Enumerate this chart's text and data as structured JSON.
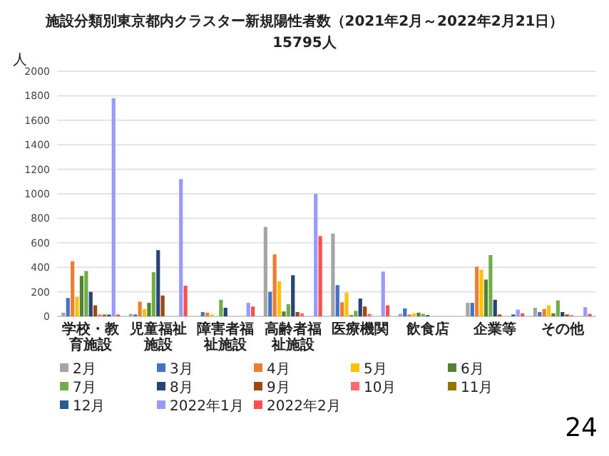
{
  "chart_data": {
    "type": "bar",
    "title": "施設分類別東京都内クラスター新規陽性者数（2021年2月～2022年2月21日）",
    "subtitle": "15795人",
    "ylabel": "人",
    "categories": [
      "学校・教育施設",
      "児童福祉施設",
      "障害者福祉施設",
      "高齢者福祉施設",
      "医療機関",
      "飲食店",
      "企業等",
      "その他"
    ],
    "series": [
      {
        "name": "2月",
        "color": "#a5a5a5",
        "values": [
          30,
          20,
          null,
          730,
          675,
          20,
          110,
          70
        ]
      },
      {
        "name": "3月",
        "color": "#4472c4",
        "values": [
          150,
          15,
          35,
          200,
          255,
          65,
          110,
          35
        ]
      },
      {
        "name": "4月",
        "color": "#ed7d31",
        "values": [
          450,
          120,
          30,
          505,
          115,
          15,
          405,
          60
        ]
      },
      {
        "name": "5月",
        "color": "#ffc000",
        "values": [
          160,
          60,
          15,
          285,
          195,
          25,
          380,
          90
        ]
      },
      {
        "name": "6月",
        "color": "#548235",
        "values": [
          330,
          110,
          0,
          40,
          10,
          30,
          300,
          25
        ]
      },
      {
        "name": "7月",
        "color": "#70ad47",
        "values": [
          370,
          360,
          135,
          100,
          45,
          20,
          500,
          130
        ]
      },
      {
        "name": "8月",
        "color": "#264478",
        "values": [
          200,
          540,
          70,
          335,
          145,
          10,
          135,
          35
        ]
      },
      {
        "name": "9月",
        "color": "#9e480e",
        "values": [
          90,
          170,
          0,
          35,
          80,
          null,
          15,
          15
        ]
      },
      {
        "name": "10月",
        "color": "#ff6b6b",
        "values": [
          15,
          0,
          0,
          25,
          20,
          0,
          0,
          10
        ]
      },
      {
        "name": "11月",
        "color": "#997300",
        "values": [
          15,
          0,
          0,
          0,
          0,
          0,
          0,
          0
        ]
      },
      {
        "name": "12月",
        "color": "#255e91",
        "values": [
          15,
          null,
          0,
          0,
          0,
          0,
          15,
          0
        ]
      },
      {
        "name": "2022年1月",
        "color": "#9999ff",
        "values": [
          1780,
          1120,
          110,
          1000,
          365,
          0,
          55,
          75
        ]
      },
      {
        "name": "2022年2月",
        "color": "#ff4f4f",
        "values": [
          15,
          250,
          80,
          655,
          90,
          0,
          25,
          20
        ]
      }
    ],
    "ylim": [
      0,
      2000
    ],
    "yticks": [
      0,
      200,
      400,
      600,
      800,
      1000,
      1200,
      1400,
      1600,
      1800,
      2000
    ],
    "grid": "y",
    "legend": "bottom",
    "annotations": [
      "24"
    ]
  }
}
